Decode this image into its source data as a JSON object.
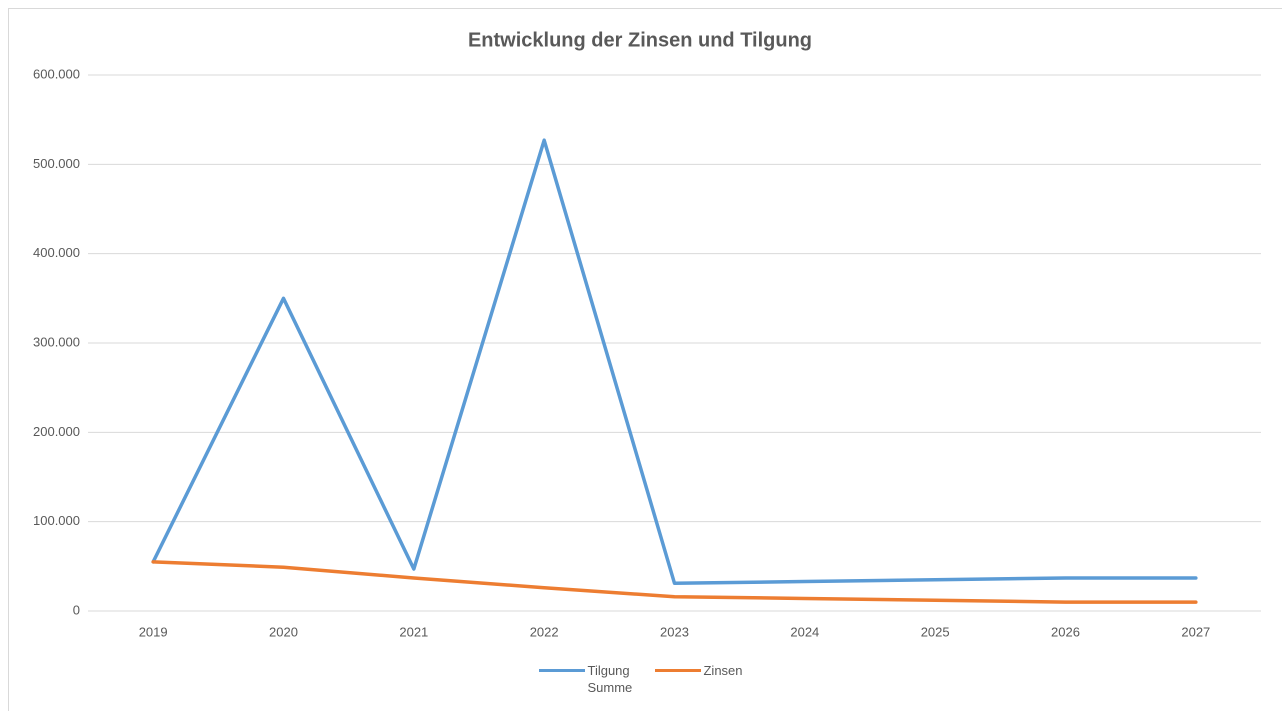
{
  "chart_data": {
    "type": "line",
    "title": "Entwicklung der Zinsen und Tilgung",
    "categories": [
      "2019",
      "2020",
      "2021",
      "2022",
      "2023",
      "2024",
      "2025",
      "2026",
      "2027"
    ],
    "series": [
      {
        "name": "Tilgung Summe",
        "color": "#5b9bd5",
        "values": [
          55000,
          350000,
          47000,
          527000,
          31000,
          33000,
          35000,
          37000,
          37000
        ]
      },
      {
        "name": "Zinsen",
        "color": "#ed7d31",
        "values": [
          55000,
          49000,
          37000,
          26000,
          16000,
          14000,
          12000,
          10000,
          10000
        ]
      }
    ],
    "ylim": [
      0,
      600000
    ],
    "yticks": [
      0,
      {
        "value": 100000,
        "label": "100.000"
      },
      {
        "value": 200000,
        "label": "200.000"
      },
      {
        "value": 300000,
        "label": "300.000"
      },
      {
        "value": 400000,
        "label": "400.000"
      },
      {
        "value": 500000,
        "label": "500.000"
      },
      {
        "value": 600000,
        "label": "600.000"
      }
    ],
    "grid": true,
    "legend": "bottom"
  }
}
